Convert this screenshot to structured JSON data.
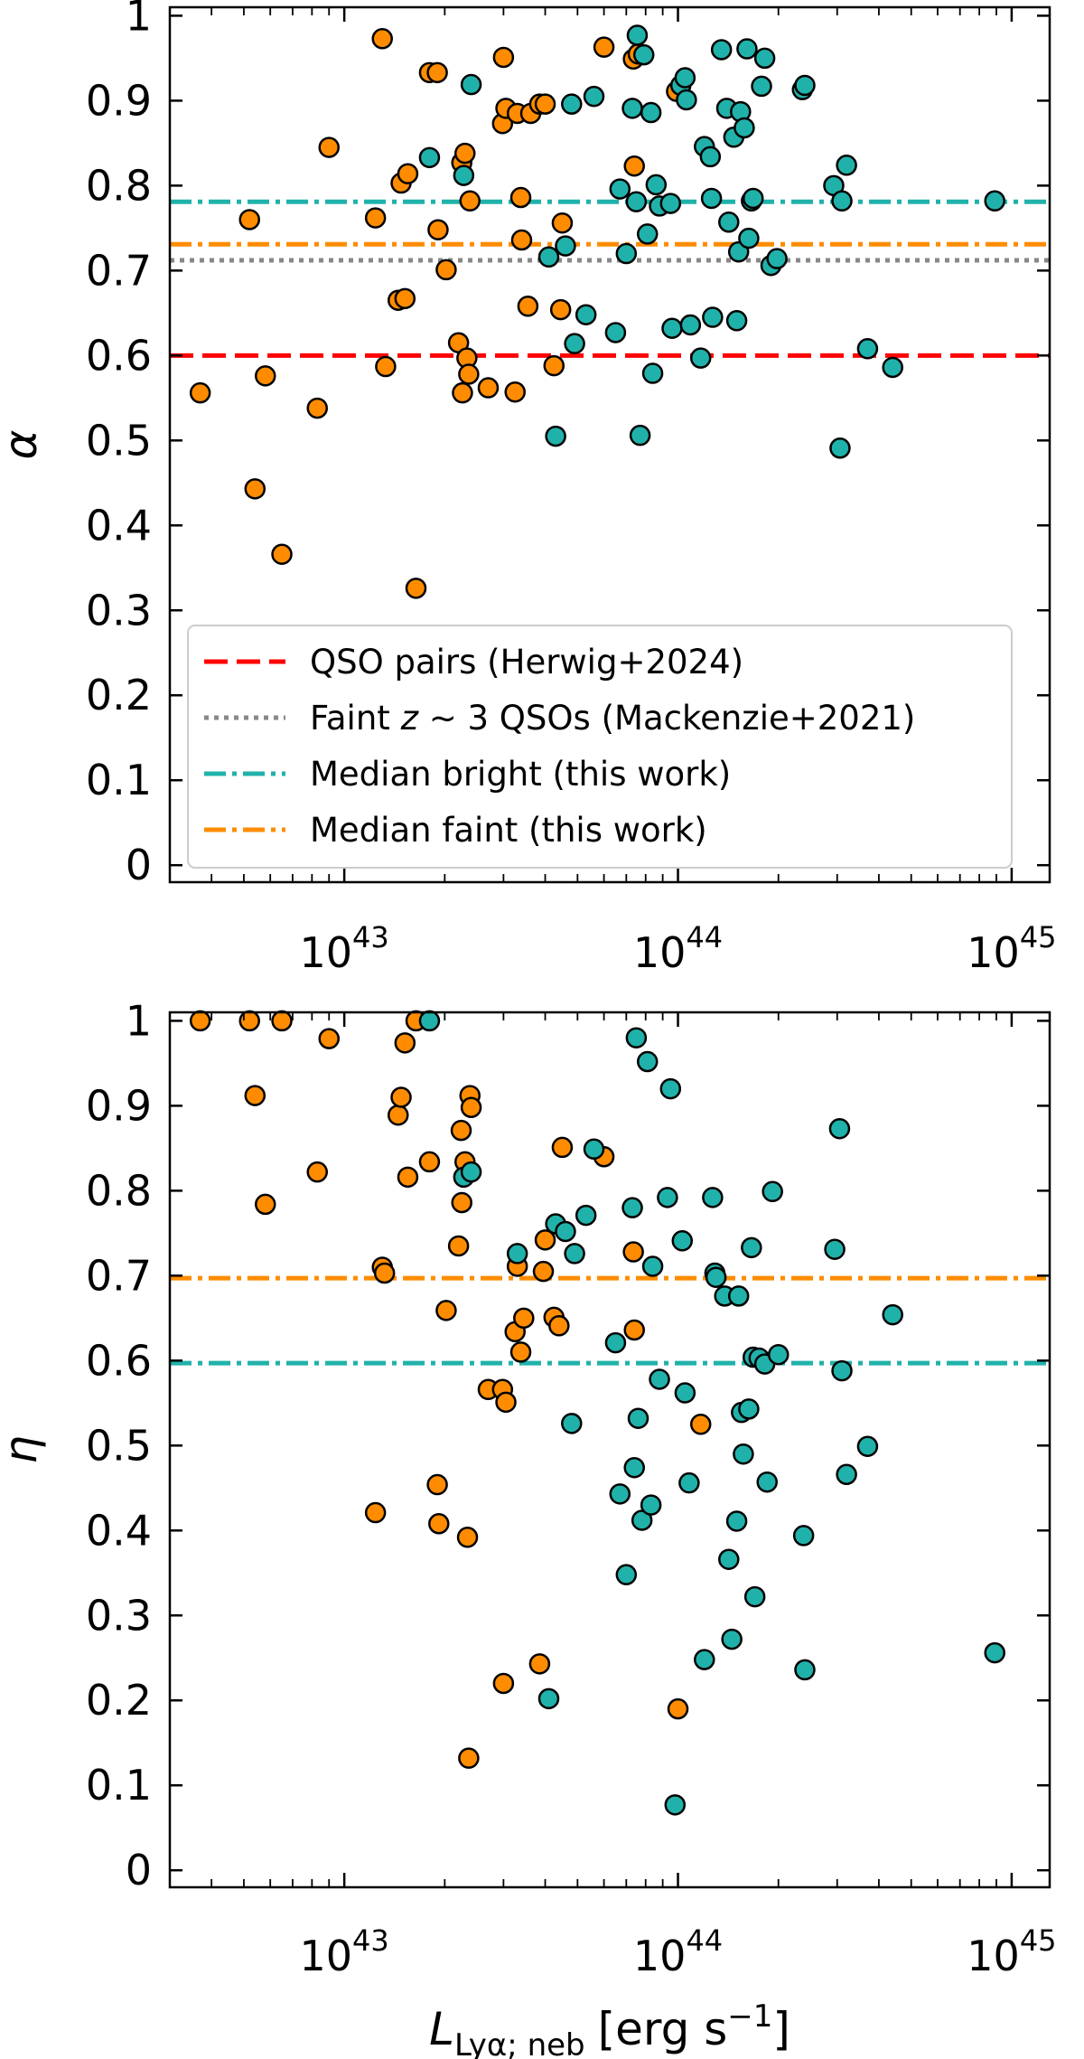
{
  "colors": {
    "bright": "#20b2aa",
    "faint": "#ff8c00",
    "herwig": "#ff0000",
    "mackenzie": "#888888"
  },
  "chart_data": [
    {
      "type": "scatter",
      "panel": "top",
      "ylabel": "α",
      "xlabel": "",
      "xscale": "log",
      "xlim": [
        3e+42,
        1.3e+45
      ],
      "ylim": [
        -0.02,
        1.01
      ],
      "yticks": [
        "0",
        "0.1",
        "0.2",
        "0.3",
        "0.4",
        "0.5",
        "0.6",
        "0.7",
        "0.8",
        "0.9",
        "1"
      ],
      "xticks": [
        {
          "base": "10",
          "exp": "43"
        },
        {
          "base": "10",
          "exp": "44"
        },
        {
          "base": "10",
          "exp": "45"
        }
      ],
      "hlines": [
        {
          "name": "QSO pairs (Herwig+2024)",
          "y": 0.6,
          "color": "#ff0000",
          "style": "dashed"
        },
        {
          "name": "Faint z ~ 3 QSOs (Mackenzie+2021)",
          "y": 0.712,
          "color": "#888888",
          "style": "dotted"
        },
        {
          "name": "Median bright (this work)",
          "y": 0.781,
          "color": "#20b2aa",
          "style": "dashdot"
        },
        {
          "name": "Median faint (this work)",
          "y": 0.731,
          "color": "#ff8c00",
          "style": "dashdot"
        }
      ],
      "legend": {
        "location": "lower-left",
        "entries": [
          {
            "pre": "QSO pairs (Herwig+2024)",
            "math": "",
            "post": "",
            "color": "#ff0000",
            "style": "dashed"
          },
          {
            "pre": "Faint ",
            "math": "z",
            "post": " ∼ 3 QSOs (Mackenzie+2021)",
            "color": "#888888",
            "style": "dotted"
          },
          {
            "pre": "Median bright (this work)",
            "math": "",
            "post": "",
            "color": "#20b2aa",
            "style": "dashdot"
          },
          {
            "pre": "Median faint (this work)",
            "math": "",
            "post": "",
            "color": "#ff8c00",
            "style": "dashdot"
          }
        ]
      },
      "series": [
        {
          "name": "faint",
          "color": "#ff8c00",
          "points": [
            [
              3.7e+42,
              0.556
            ],
            [
              5.2e+42,
              0.76
            ],
            [
              5.4e+42,
              0.443
            ],
            [
              5.8e+42,
              0.576
            ],
            [
              6.5e+42,
              0.366
            ],
            [
              8.3e+42,
              0.538
            ],
            [
              9e+42,
              0.845
            ],
            [
              1.24e+43,
              0.762
            ],
            [
              1.3e+43,
              0.973
            ],
            [
              1.33e+43,
              0.587
            ],
            [
              1.45e+43,
              0.665
            ],
            [
              1.48e+43,
              0.803
            ],
            [
              1.52e+43,
              0.667
            ],
            [
              1.55e+43,
              0.814
            ],
            [
              1.64e+43,
              0.326
            ],
            [
              1.8e+43,
              0.933
            ],
            [
              1.9e+43,
              0.933
            ],
            [
              1.91e+43,
              0.748
            ],
            [
              2.02e+43,
              0.701
            ],
            [
              2.2e+43,
              0.615
            ],
            [
              2.25e+43,
              0.827
            ],
            [
              2.26e+43,
              0.556
            ],
            [
              2.3e+43,
              0.838
            ],
            [
              2.33e+43,
              0.597
            ],
            [
              2.36e+43,
              0.578
            ],
            [
              2.38e+43,
              0.782
            ],
            [
              2.7e+43,
              0.562
            ],
            [
              2.98e+43,
              0.873
            ],
            [
              3e+43,
              0.951
            ],
            [
              3.05e+43,
              0.891
            ],
            [
              3.25e+43,
              0.557
            ],
            [
              3.3e+43,
              0.885
            ],
            [
              3.38e+43,
              0.786
            ],
            [
              3.4e+43,
              0.736
            ],
            [
              3.55e+43,
              0.658
            ],
            [
              3.62e+43,
              0.885
            ],
            [
              3.85e+43,
              0.896
            ],
            [
              4e+43,
              0.896
            ],
            [
              4.25e+43,
              0.588
            ],
            [
              4.45e+43,
              0.654
            ],
            [
              4.5e+43,
              0.756
            ],
            [
              6e+43,
              0.963
            ],
            [
              7.35e+43,
              0.949
            ],
            [
              7.4e+43,
              0.823
            ],
            [
              7.6e+43,
              0.955
            ],
            [
              9.9e+43,
              0.911
            ]
          ]
        },
        {
          "name": "bright",
          "color": "#20b2aa",
          "points": [
            [
              1.8e+43,
              0.833
            ],
            [
              2.28e+43,
              0.812
            ],
            [
              2.4e+43,
              0.919
            ],
            [
              4.1e+43,
              0.716
            ],
            [
              4.3e+43,
              0.505
            ],
            [
              4.6e+43,
              0.729
            ],
            [
              4.8e+43,
              0.896
            ],
            [
              4.9e+43,
              0.614
            ],
            [
              5.3e+43,
              0.648
            ],
            [
              5.6e+43,
              0.905
            ],
            [
              6.5e+43,
              0.627
            ],
            [
              6.7e+43,
              0.796
            ],
            [
              7e+43,
              0.72
            ],
            [
              7.3e+43,
              0.891
            ],
            [
              7.5e+43,
              0.781
            ],
            [
              7.55e+43,
              0.977
            ],
            [
              7.7e+43,
              0.506
            ],
            [
              7.9e+43,
              0.954
            ],
            [
              8.1e+43,
              0.743
            ],
            [
              8.3e+43,
              0.886
            ],
            [
              8.4e+43,
              0.579
            ],
            [
              8.6e+43,
              0.801
            ],
            [
              8.8e+43,
              0.776
            ],
            [
              9.5e+43,
              0.779
            ],
            [
              9.6e+43,
              0.632
            ],
            [
              1.02e+44,
              0.918
            ],
            [
              1.05e+44,
              0.927
            ],
            [
              1.06e+44,
              0.901
            ],
            [
              1.09e+44,
              0.636
            ],
            [
              1.17e+44,
              0.597
            ],
            [
              1.2e+44,
              0.846
            ],
            [
              1.25e+44,
              0.834
            ],
            [
              1.26e+44,
              0.785
            ],
            [
              1.27e+44,
              0.645
            ],
            [
              1.35e+44,
              0.96
            ],
            [
              1.4e+44,
              0.891
            ],
            [
              1.42e+44,
              0.757
            ],
            [
              1.47e+44,
              0.857
            ],
            [
              1.5e+44,
              0.641
            ],
            [
              1.52e+44,
              0.722
            ],
            [
              1.54e+44,
              0.887
            ],
            [
              1.58e+44,
              0.868
            ],
            [
              1.61e+44,
              0.961
            ],
            [
              1.63e+44,
              0.738
            ],
            [
              1.66e+44,
              0.782
            ],
            [
              1.68e+44,
              0.785
            ],
            [
              1.78e+44,
              0.917
            ],
            [
              1.82e+44,
              0.95
            ],
            [
              1.9e+44,
              0.706
            ],
            [
              1.98e+44,
              0.714
            ],
            [
              2.36e+44,
              0.913
            ],
            [
              2.4e+44,
              0.918
            ],
            [
              2.93e+44,
              0.8
            ],
            [
              3.06e+44,
              0.491
            ],
            [
              3.1e+44,
              0.782
            ],
            [
              3.2e+44,
              0.824
            ],
            [
              3.7e+44,
              0.608
            ],
            [
              4.4e+44,
              0.586
            ],
            [
              8.9e+44,
              0.782
            ]
          ]
        }
      ]
    },
    {
      "type": "scatter",
      "panel": "bottom",
      "ylabel": "η",
      "xlabel_main": "L",
      "xlabel_sub": "Lyα; neb",
      "xlabel_unit_pre": "[erg s",
      "xlabel_unit_exp": "−1",
      "xlabel_unit_post": "]",
      "xscale": "log",
      "xlim": [
        3e+42,
        1.3e+45
      ],
      "ylim": [
        -0.02,
        1.01
      ],
      "yticks": [
        "0",
        "0.1",
        "0.2",
        "0.3",
        "0.4",
        "0.5",
        "0.6",
        "0.7",
        "0.8",
        "0.9",
        "1"
      ],
      "xticks": [
        {
          "base": "10",
          "exp": "43"
        },
        {
          "base": "10",
          "exp": "44"
        },
        {
          "base": "10",
          "exp": "45"
        }
      ],
      "hlines": [
        {
          "name": "Median faint (this work)",
          "y": 0.697,
          "color": "#ff8c00",
          "style": "dashdot"
        },
        {
          "name": "Median bright (this work)",
          "y": 0.597,
          "color": "#20b2aa",
          "style": "dashdot"
        }
      ],
      "series": [
        {
          "name": "faint",
          "color": "#ff8c00",
          "points": [
            [
              3.7e+42,
              1.0
            ],
            [
              5.2e+42,
              1.0
            ],
            [
              5.4e+42,
              0.912
            ],
            [
              5.8e+42,
              0.784
            ],
            [
              6.5e+42,
              1.0
            ],
            [
              8.3e+42,
              0.822
            ],
            [
              9e+42,
              0.979
            ],
            [
              1.24e+43,
              0.421
            ],
            [
              1.3e+43,
              0.71
            ],
            [
              1.32e+43,
              0.703
            ],
            [
              1.45e+43,
              0.889
            ],
            [
              1.48e+43,
              0.91
            ],
            [
              1.52e+43,
              0.974
            ],
            [
              1.55e+43,
              0.816
            ],
            [
              1.64e+43,
              1.0
            ],
            [
              1.8e+43,
              0.834
            ],
            [
              1.9e+43,
              0.454
            ],
            [
              1.92e+43,
              0.408
            ],
            [
              2.02e+43,
              0.659
            ],
            [
              2.2e+43,
              0.735
            ],
            [
              2.24e+43,
              0.871
            ],
            [
              2.25e+43,
              0.786
            ],
            [
              2.3e+43,
              0.834
            ],
            [
              2.34e+43,
              0.392
            ],
            [
              2.36e+43,
              0.132
            ],
            [
              2.38e+43,
              0.912
            ],
            [
              2.4e+43,
              0.898
            ],
            [
              2.7e+43,
              0.566
            ],
            [
              2.98e+43,
              0.566
            ],
            [
              3e+43,
              0.22
            ],
            [
              3.05e+43,
              0.551
            ],
            [
              3.25e+43,
              0.634
            ],
            [
              3.3e+43,
              0.711
            ],
            [
              3.38e+43,
              0.61
            ],
            [
              3.45e+43,
              0.65
            ],
            [
              3.85e+43,
              0.243
            ],
            [
              3.95e+43,
              0.705
            ],
            [
              4e+43,
              0.742
            ],
            [
              4.25e+43,
              0.651
            ],
            [
              4.4e+43,
              0.641
            ],
            [
              4.5e+43,
              0.851
            ],
            [
              6e+43,
              0.84
            ],
            [
              7.35e+43,
              0.728
            ],
            [
              7.4e+43,
              0.636
            ],
            [
              1e+44,
              0.19
            ],
            [
              1.17e+44,
              0.525
            ]
          ]
        },
        {
          "name": "bright",
          "color": "#20b2aa",
          "points": [
            [
              1.8e+43,
              1.0
            ],
            [
              2.28e+43,
              0.816
            ],
            [
              2.4e+43,
              0.822
            ],
            [
              3.3e+43,
              0.726
            ],
            [
              4.1e+43,
              0.202
            ],
            [
              4.3e+43,
              0.761
            ],
            [
              4.6e+43,
              0.752
            ],
            [
              4.8e+43,
              0.526
            ],
            [
              4.9e+43,
              0.726
            ],
            [
              5.3e+43,
              0.771
            ],
            [
              5.6e+43,
              0.849
            ],
            [
              6.5e+43,
              0.621
            ],
            [
              6.7e+43,
              0.443
            ],
            [
              7e+43,
              0.348
            ],
            [
              7.3e+43,
              0.78
            ],
            [
              7.4e+43,
              0.474
            ],
            [
              7.5e+43,
              0.98
            ],
            [
              7.6e+43,
              0.532
            ],
            [
              7.8e+43,
              0.412
            ],
            [
              8.1e+43,
              0.952
            ],
            [
              8.3e+43,
              0.43
            ],
            [
              8.4e+43,
              0.711
            ],
            [
              8.8e+43,
              0.578
            ],
            [
              9.3e+43,
              0.792
            ],
            [
              9.5e+43,
              0.92
            ],
            [
              9.8e+43,
              0.077
            ],
            [
              1.03e+44,
              0.741
            ],
            [
              1.05e+44,
              0.562
            ],
            [
              1.08e+44,
              0.456
            ],
            [
              1.2e+44,
              0.248
            ],
            [
              1.27e+44,
              0.792
            ],
            [
              1.29e+44,
              0.703
            ],
            [
              1.3e+44,
              0.698
            ],
            [
              1.38e+44,
              0.676
            ],
            [
              1.42e+44,
              0.366
            ],
            [
              1.45e+44,
              0.272
            ],
            [
              1.5e+44,
              0.411
            ],
            [
              1.52e+44,
              0.676
            ],
            [
              1.55e+44,
              0.539
            ],
            [
              1.57e+44,
              0.49
            ],
            [
              1.63e+44,
              0.543
            ],
            [
              1.66e+44,
              0.733
            ],
            [
              1.68e+44,
              0.604
            ],
            [
              1.7e+44,
              0.322
            ],
            [
              1.75e+44,
              0.603
            ],
            [
              1.82e+44,
              0.596
            ],
            [
              1.85e+44,
              0.457
            ],
            [
              1.92e+44,
              0.799
            ],
            [
              2e+44,
              0.607
            ],
            [
              2.38e+44,
              0.394
            ],
            [
              2.4e+44,
              0.236
            ],
            [
              2.95e+44,
              0.731
            ],
            [
              3.05e+44,
              0.873
            ],
            [
              3.1e+44,
              0.588
            ],
            [
              3.2e+44,
              0.466
            ],
            [
              3.7e+44,
              0.499
            ],
            [
              4.4e+44,
              0.654
            ],
            [
              8.9e+44,
              0.256
            ]
          ]
        }
      ]
    }
  ]
}
